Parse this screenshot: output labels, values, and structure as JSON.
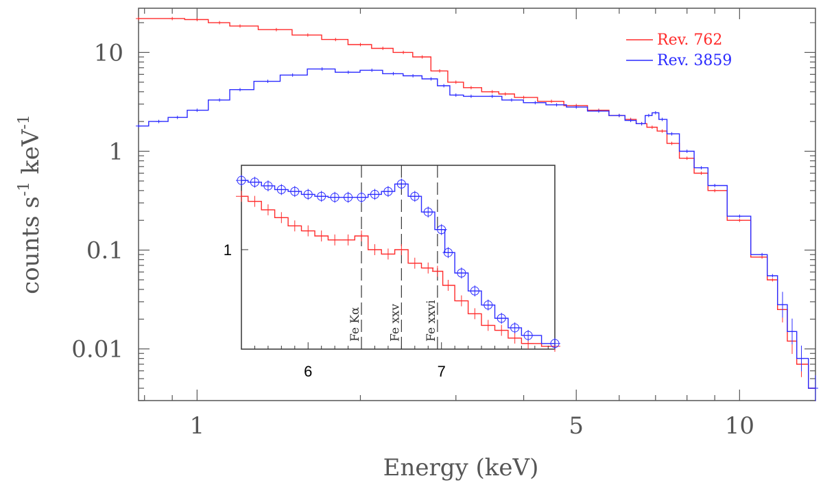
{
  "chart_data": {
    "type": "line",
    "title": "",
    "xlabel": "Energy (keV)",
    "ylabel_parts": [
      "counts s",
      "-1",
      " keV",
      "-1"
    ],
    "xscale": "log",
    "yscale": "log",
    "xlim": [
      0.78,
      13.8
    ],
    "ylim": [
      0.003,
      28
    ],
    "x_ticks": [
      {
        "v": 1,
        "label": "1"
      },
      {
        "v": 5,
        "label": "5"
      },
      {
        "v": 10,
        "label": "10"
      }
    ],
    "y_ticks": [
      {
        "v": 10,
        "label": "10"
      },
      {
        "v": 1,
        "label": "1"
      },
      {
        "v": 0.1,
        "label": "0.1"
      },
      {
        "v": 0.01,
        "label": "0.01"
      }
    ],
    "legend_position": "top-right",
    "series": [
      {
        "name": "Rev. 762",
        "color": "#ff2a2a",
        "points": [
          [
            0.78,
            22
          ],
          [
            0.9,
            22
          ],
          [
            1.0,
            21.5
          ],
          [
            1.1,
            20
          ],
          [
            1.2,
            18.5
          ],
          [
            1.4,
            17
          ],
          [
            1.6,
            15
          ],
          [
            1.8,
            13.5
          ],
          [
            2.0,
            12
          ],
          [
            2.2,
            11
          ],
          [
            2.4,
            10
          ],
          [
            2.6,
            9
          ],
          [
            2.8,
            6.5
          ],
          [
            3.0,
            5
          ],
          [
            3.2,
            4.4
          ],
          [
            3.5,
            4.0
          ],
          [
            3.7,
            3.8
          ],
          [
            4.0,
            3.5
          ],
          [
            4.5,
            3.2
          ],
          [
            5.0,
            2.9
          ],
          [
            5.5,
            2.6
          ],
          [
            6.0,
            2.3
          ],
          [
            6.3,
            2.1
          ],
          [
            6.6,
            1.9
          ],
          [
            6.9,
            1.75
          ],
          [
            7.2,
            1.6
          ],
          [
            7.5,
            1.2
          ],
          [
            8.0,
            0.85
          ],
          [
            8.5,
            0.6
          ],
          [
            9.0,
            0.4
          ],
          [
            10.0,
            0.2
          ],
          [
            11.0,
            0.085
          ],
          [
            11.5,
            0.05
          ],
          [
            12.0,
            0.025
          ],
          [
            12.5,
            0.012
          ],
          [
            13.0,
            0.007
          ],
          [
            13.8,
            0.004
          ]
        ]
      },
      {
        "name": "Rev. 3859",
        "color": "#2a2aff",
        "points": [
          [
            0.78,
            1.8
          ],
          [
            0.85,
            2.0
          ],
          [
            0.92,
            2.2
          ],
          [
            1.0,
            2.6
          ],
          [
            1.1,
            3.3
          ],
          [
            1.2,
            4.2
          ],
          [
            1.35,
            5.1
          ],
          [
            1.5,
            5.9
          ],
          [
            1.7,
            6.8
          ],
          [
            1.9,
            6.3
          ],
          [
            2.1,
            6.6
          ],
          [
            2.3,
            6.1
          ],
          [
            2.5,
            5.8
          ],
          [
            2.7,
            5.4
          ],
          [
            2.85,
            4.6
          ],
          [
            3.0,
            3.7
          ],
          [
            3.2,
            3.6
          ],
          [
            3.5,
            3.6
          ],
          [
            3.8,
            3.3
          ],
          [
            4.2,
            3.1
          ],
          [
            4.6,
            2.95
          ],
          [
            5.0,
            2.8
          ],
          [
            5.5,
            2.55
          ],
          [
            6.0,
            2.3
          ],
          [
            6.3,
            2.05
          ],
          [
            6.6,
            1.9
          ],
          [
            6.8,
            2.3
          ],
          [
            7.0,
            2.45
          ],
          [
            7.2,
            2.1
          ],
          [
            7.5,
            1.5
          ],
          [
            8.0,
            1.0
          ],
          [
            8.5,
            0.68
          ],
          [
            9.0,
            0.45
          ],
          [
            10.0,
            0.22
          ],
          [
            11.0,
            0.09
          ],
          [
            11.5,
            0.055
          ],
          [
            12.0,
            0.028
          ],
          [
            12.5,
            0.015
          ],
          [
            13.0,
            0.008
          ],
          [
            13.8,
            0.004
          ]
        ]
      }
    ],
    "inset": {
      "xlim": [
        5.5,
        7.85
      ],
      "ylim": [
        0.5,
        1.8
      ],
      "x_ticks": [
        {
          "v": 6,
          "label": "6"
        },
        {
          "v": 7,
          "label": "7"
        }
      ],
      "y_ticks": [
        {
          "v": 1,
          "label": "1"
        }
      ],
      "lines": [
        {
          "v": 6.4,
          "label": "Fe Kα"
        },
        {
          "v": 6.7,
          "label": "Fe xxv"
        },
        {
          "v": 6.97,
          "label": "Fe xxvi"
        }
      ],
      "series": [
        {
          "name": "Rev. 762",
          "color": "#ff2a2a",
          "points": [
            [
              5.5,
              1.45
            ],
            [
              5.6,
              1.4
            ],
            [
              5.7,
              1.32
            ],
            [
              5.8,
              1.25
            ],
            [
              5.9,
              1.18
            ],
            [
              6.0,
              1.14
            ],
            [
              6.1,
              1.1
            ],
            [
              6.2,
              1.07
            ],
            [
              6.3,
              1.07
            ],
            [
              6.4,
              1.1
            ],
            [
              6.5,
              1.0
            ],
            [
              6.6,
              0.97
            ],
            [
              6.7,
              1.0
            ],
            [
              6.8,
              0.91
            ],
            [
              6.9,
              0.88
            ],
            [
              6.97,
              0.86
            ],
            [
              7.05,
              0.78
            ],
            [
              7.15,
              0.7
            ],
            [
              7.25,
              0.64
            ],
            [
              7.35,
              0.59
            ],
            [
              7.45,
              0.57
            ],
            [
              7.55,
              0.54
            ],
            [
              7.65,
              0.52
            ],
            [
              7.85,
              0.51
            ]
          ]
        },
        {
          "name": "Rev. 3859",
          "color": "#2a2aff",
          "points": [
            [
              5.5,
              1.62
            ],
            [
              5.6,
              1.6
            ],
            [
              5.7,
              1.56
            ],
            [
              5.8,
              1.52
            ],
            [
              5.9,
              1.5
            ],
            [
              6.0,
              1.47
            ],
            [
              6.1,
              1.45
            ],
            [
              6.2,
              1.44
            ],
            [
              6.3,
              1.44
            ],
            [
              6.4,
              1.44
            ],
            [
              6.5,
              1.47
            ],
            [
              6.6,
              1.5
            ],
            [
              6.7,
              1.58
            ],
            [
              6.8,
              1.45
            ],
            [
              6.9,
              1.3
            ],
            [
              7.0,
              1.15
            ],
            [
              7.05,
              0.98
            ],
            [
              7.15,
              0.85
            ],
            [
              7.25,
              0.75
            ],
            [
              7.35,
              0.68
            ],
            [
              7.45,
              0.62
            ],
            [
              7.55,
              0.58
            ],
            [
              7.65,
              0.55
            ],
            [
              7.85,
              0.52
            ]
          ]
        }
      ]
    }
  }
}
